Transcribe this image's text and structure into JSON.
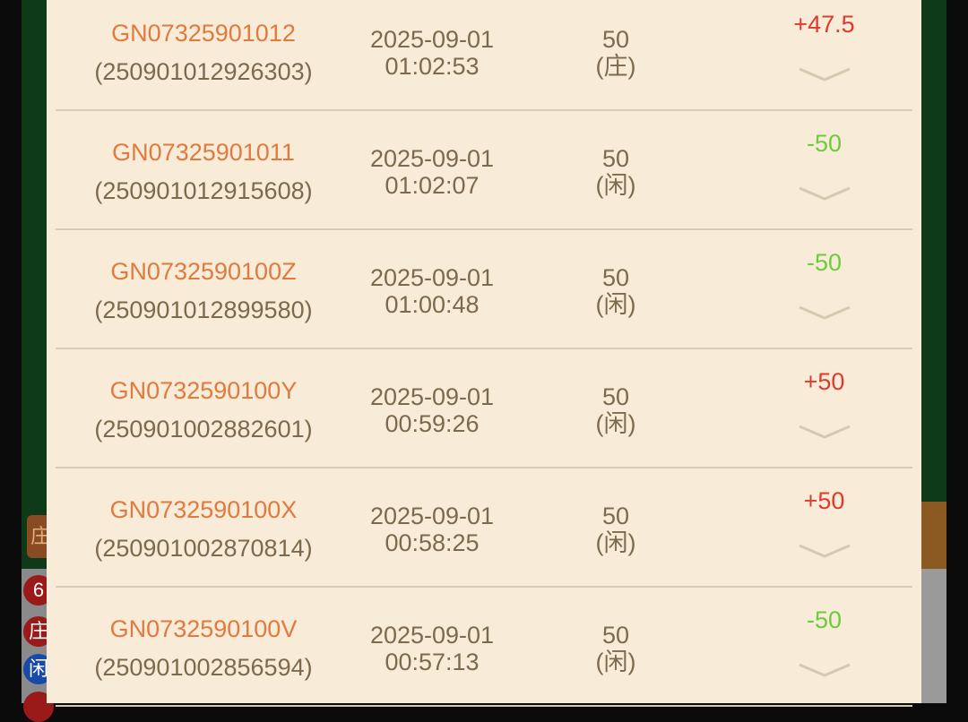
{
  "background": {
    "left_badges": [
      "6",
      "庄",
      "闲"
    ],
    "left_tag": "庄"
  },
  "records": [
    {
      "game_id": "GN07325901012",
      "bet_id": "(250901012926303)",
      "date": "2025-09-01",
      "time": "01:02:53",
      "amount": "50",
      "side": "(庄)",
      "result": "+47.5",
      "result_type": "win"
    },
    {
      "game_id": "GN07325901011",
      "bet_id": "(250901012915608)",
      "date": "2025-09-01",
      "time": "01:02:07",
      "amount": "50",
      "side": "(闲)",
      "result": "-50",
      "result_type": "loss"
    },
    {
      "game_id": "GN0732590100Z",
      "bet_id": "(250901012899580)",
      "date": "2025-09-01",
      "time": "01:00:48",
      "amount": "50",
      "side": "(闲)",
      "result": "-50",
      "result_type": "loss"
    },
    {
      "game_id": "GN0732590100Y",
      "bet_id": "(250901002882601)",
      "date": "2025-09-01",
      "time": "00:59:26",
      "amount": "50",
      "side": "(闲)",
      "result": "+50",
      "result_type": "win"
    },
    {
      "game_id": "GN0732590100X",
      "bet_id": "(250901002870814)",
      "date": "2025-09-01",
      "time": "00:58:25",
      "amount": "50",
      "side": "(闲)",
      "result": "+50",
      "result_type": "win"
    },
    {
      "game_id": "GN0732590100V",
      "bet_id": "(250901002856594)",
      "date": "2025-09-01",
      "time": "00:57:13",
      "amount": "50",
      "side": "(闲)",
      "result": "-50",
      "result_type": "loss"
    }
  ],
  "colors": {
    "win": "#e03a2e",
    "loss": "#6bcb3a",
    "game_id": "#e07a3e",
    "text": "#7d6a4c",
    "panel": "#f8ecd8"
  }
}
